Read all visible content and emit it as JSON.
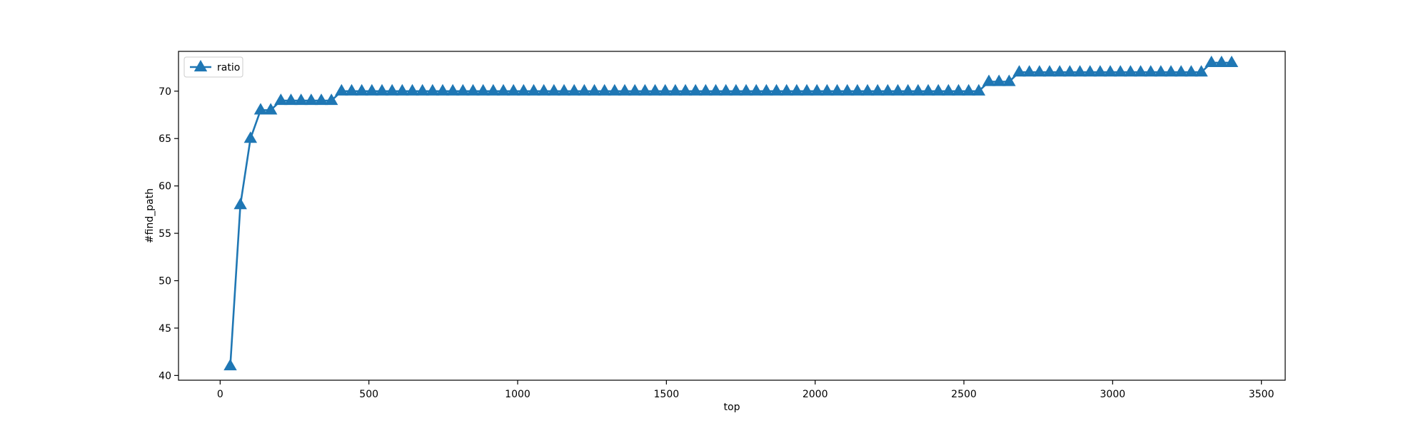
{
  "chart_data": {
    "type": "line",
    "title": "",
    "xlabel": "top",
    "ylabel": "#find_path",
    "xlim": [
      -140,
      3580
    ],
    "ylim": [
      39.5,
      74.2
    ],
    "xticks": [
      0,
      500,
      1000,
      1500,
      2000,
      2500,
      3000,
      3500
    ],
    "yticks": [
      40,
      45,
      50,
      55,
      60,
      65,
      70
    ],
    "grid": false,
    "legend": {
      "position": "top-left",
      "entries": [
        "ratio"
      ]
    },
    "marker": "triangle-up",
    "colors": {
      "series": "#1f77b4",
      "axes": "#000000",
      "background": "#ffffff"
    },
    "series": [
      {
        "name": "ratio",
        "x": [
          34,
          68,
          102,
          136,
          170,
          204,
          238,
          272,
          306,
          340,
          374,
          408,
          442,
          476,
          510,
          544,
          578,
          612,
          646,
          680,
          714,
          748,
          782,
          816,
          850,
          884,
          918,
          952,
          986,
          1020,
          1054,
          1088,
          1122,
          1156,
          1190,
          1224,
          1258,
          1292,
          1326,
          1360,
          1394,
          1428,
          1462,
          1496,
          1530,
          1564,
          1598,
          1632,
          1666,
          1700,
          1734,
          1768,
          1802,
          1836,
          1870,
          1904,
          1938,
          1972,
          2006,
          2040,
          2074,
          2108,
          2142,
          2176,
          2210,
          2244,
          2278,
          2312,
          2346,
          2380,
          2414,
          2448,
          2482,
          2516,
          2550,
          2584,
          2618,
          2652,
          2686,
          2720,
          2754,
          2788,
          2822,
          2856,
          2890,
          2924,
          2958,
          2992,
          3026,
          3060,
          3094,
          3128,
          3162,
          3196,
          3230,
          3264,
          3298,
          3332,
          3366,
          3400
        ],
        "values": [
          41,
          58,
          65,
          68,
          68,
          69,
          69,
          69,
          69,
          69,
          69,
          70,
          70,
          70,
          70,
          70,
          70,
          70,
          70,
          70,
          70,
          70,
          70,
          70,
          70,
          70,
          70,
          70,
          70,
          70,
          70,
          70,
          70,
          70,
          70,
          70,
          70,
          70,
          70,
          70,
          70,
          70,
          70,
          70,
          70,
          70,
          70,
          70,
          70,
          70,
          70,
          70,
          70,
          70,
          70,
          70,
          70,
          70,
          70,
          70,
          70,
          70,
          70,
          70,
          70,
          70,
          70,
          70,
          70,
          70,
          70,
          70,
          70,
          70,
          70,
          71,
          71,
          71,
          72,
          72,
          72,
          72,
          72,
          72,
          72,
          72,
          72,
          72,
          72,
          72,
          72,
          72,
          72,
          72,
          72,
          72,
          72,
          73,
          73,
          73
        ]
      }
    ]
  }
}
